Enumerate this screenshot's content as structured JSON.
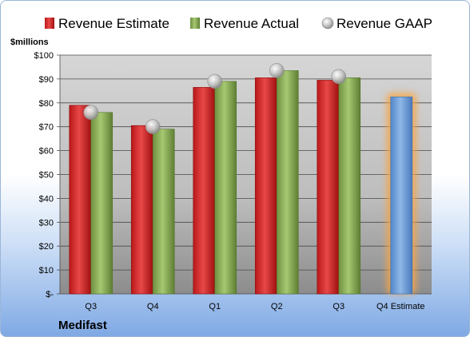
{
  "chart_data": {
    "type": "bar",
    "company": "Medifast",
    "units_label": "$millions",
    "categories": [
      "Q3",
      "Q4",
      "Q1",
      "Q2",
      "Q3",
      "Q4 Estimate"
    ],
    "y_ticks": [
      "$-",
      "$10",
      "$20",
      "$30",
      "$40",
      "$50",
      "$60",
      "$70",
      "$80",
      "$90",
      "$100"
    ],
    "ylim": [
      0,
      100
    ],
    "grid": true,
    "legend_position": "top",
    "series": [
      {
        "name": "Revenue Estimate",
        "type": "bar",
        "color": "#d32a2a",
        "values": [
          79,
          70.5,
          86.5,
          90.5,
          89.5,
          82.5
        ]
      },
      {
        "name": "Revenue Actual",
        "type": "bar",
        "color": "#8ab04f",
        "values": [
          76,
          69,
          89,
          93.5,
          90.5,
          null
        ]
      },
      {
        "name": "Revenue GAAP",
        "type": "scatter",
        "color": "#c8c8c8",
        "values": [
          76,
          70,
          89,
          93.5,
          91,
          null
        ]
      }
    ],
    "estimate_bar": {
      "category_index": 5,
      "color": "#6f9fd8",
      "glow": "#f5a64a"
    }
  }
}
